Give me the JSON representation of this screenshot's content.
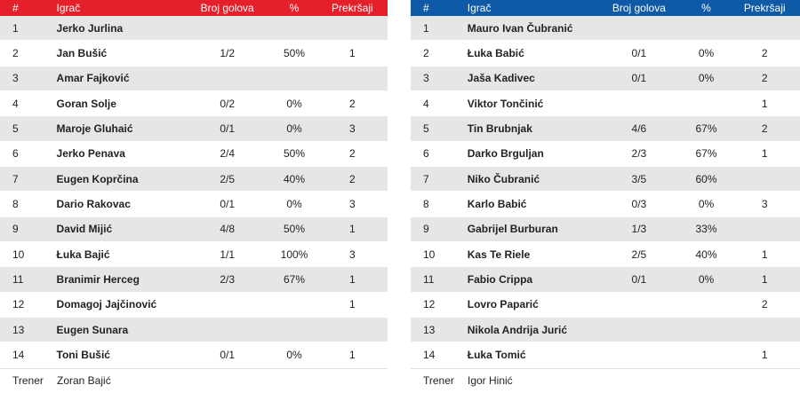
{
  "columns": {
    "num": "#",
    "player": "Igrač",
    "goals": "Broj golova",
    "pct": "%",
    "fouls": "Prekršaji"
  },
  "coach_label": "Trener",
  "colors": {
    "home_header": "#e5202a",
    "away_header": "#0e5aa7",
    "stripe": "#e6e6e6"
  },
  "home": {
    "players": [
      {
        "num": "1",
        "name": "Jerko Jurlina",
        "goals": "",
        "pct": "",
        "fouls": ""
      },
      {
        "num": "2",
        "name": "Jan Bušić",
        "goals": "1/2",
        "pct": "50%",
        "fouls": "1"
      },
      {
        "num": "3",
        "name": "Amar Fajković",
        "goals": "",
        "pct": "",
        "fouls": ""
      },
      {
        "num": "4",
        "name": "Goran Solje",
        "goals": "0/2",
        "pct": "0%",
        "fouls": "2"
      },
      {
        "num": "5",
        "name": "Maroje Gluhaić",
        "goals": "0/1",
        "pct": "0%",
        "fouls": "3"
      },
      {
        "num": "6",
        "name": "Jerko Penava",
        "goals": "2/4",
        "pct": "50%",
        "fouls": "2"
      },
      {
        "num": "7",
        "name": "Eugen Koprčina",
        "goals": "2/5",
        "pct": "40%",
        "fouls": "2"
      },
      {
        "num": "8",
        "name": "Dario Rakovac",
        "goals": "0/1",
        "pct": "0%",
        "fouls": "3"
      },
      {
        "num": "9",
        "name": "David Mijić",
        "goals": "4/8",
        "pct": "50%",
        "fouls": "1"
      },
      {
        "num": "10",
        "name": "Łuka Bajić",
        "goals": "1/1",
        "pct": "100%",
        "fouls": "3"
      },
      {
        "num": "11",
        "name": "Branimir Herceg",
        "goals": "2/3",
        "pct": "67%",
        "fouls": "1"
      },
      {
        "num": "12",
        "name": "Domagoj Jajčinović",
        "goals": "",
        "pct": "",
        "fouls": "1"
      },
      {
        "num": "13",
        "name": "Eugen Sunara",
        "goals": "",
        "pct": "",
        "fouls": ""
      },
      {
        "num": "14",
        "name": "Toni Bušić",
        "goals": "0/1",
        "pct": "0%",
        "fouls": "1"
      }
    ],
    "coach": "Zoran Bajić"
  },
  "away": {
    "players": [
      {
        "num": "1",
        "name": "Mauro Ivan Čubranić",
        "goals": "",
        "pct": "",
        "fouls": ""
      },
      {
        "num": "2",
        "name": "Łuka Babić",
        "goals": "0/1",
        "pct": "0%",
        "fouls": "2"
      },
      {
        "num": "3",
        "name": "Jaša Kadivec",
        "goals": "0/1",
        "pct": "0%",
        "fouls": "2"
      },
      {
        "num": "4",
        "name": "Viktor Tončinić",
        "goals": "",
        "pct": "",
        "fouls": "1"
      },
      {
        "num": "5",
        "name": "Tin Brubnjak",
        "goals": "4/6",
        "pct": "67%",
        "fouls": "2"
      },
      {
        "num": "6",
        "name": "Darko Brguljan",
        "goals": "2/3",
        "pct": "67%",
        "fouls": "1"
      },
      {
        "num": "7",
        "name": "Niko Čubranić",
        "goals": "3/5",
        "pct": "60%",
        "fouls": ""
      },
      {
        "num": "8",
        "name": "Karlo Babić",
        "goals": "0/3",
        "pct": "0%",
        "fouls": "3"
      },
      {
        "num": "9",
        "name": "Gabrijel Burburan",
        "goals": "1/3",
        "pct": "33%",
        "fouls": ""
      },
      {
        "num": "10",
        "name": "Kas Te Riele",
        "goals": "2/5",
        "pct": "40%",
        "fouls": "1"
      },
      {
        "num": "11",
        "name": "Fabio Crippa",
        "goals": "0/1",
        "pct": "0%",
        "fouls": "1"
      },
      {
        "num": "12",
        "name": "Lovro Paparić",
        "goals": "",
        "pct": "",
        "fouls": "2"
      },
      {
        "num": "13",
        "name": "Nikola Andrija Jurić",
        "goals": "",
        "pct": "",
        "fouls": ""
      },
      {
        "num": "14",
        "name": "Łuka Tomić",
        "goals": "",
        "pct": "",
        "fouls": "1"
      }
    ],
    "coach": "Igor Hinić"
  }
}
